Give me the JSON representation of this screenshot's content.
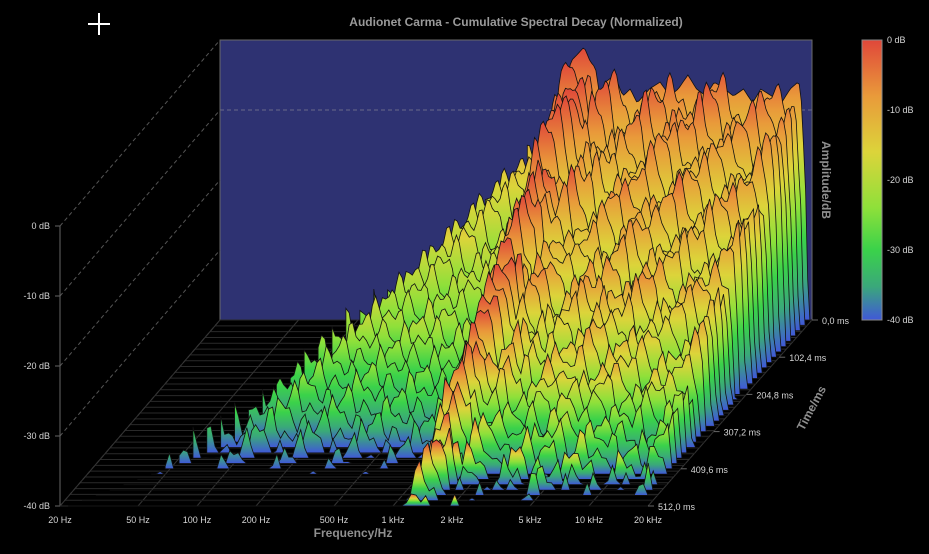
{
  "chart_data": {
    "type": "waterfall",
    "title": "Audionet Carma - Cumulative Spectral Decay (Normalized)",
    "xlabel": "Frequency/Hz",
    "ylabel": "Amplitude/dB",
    "zlabel": "Time/ms",
    "x_scale": "log",
    "xlim": [
      20,
      20000
    ],
    "ylim": [
      -40,
      0
    ],
    "x_ticks": [
      "20 Hz",
      "50 Hz",
      "100 Hz",
      "200 Hz",
      "500 Hz",
      "1 kHz",
      "2 kHz",
      "5 kHz",
      "10 kHz",
      "20 kHz"
    ],
    "x_tick_values": [
      20,
      50,
      100,
      200,
      500,
      1000,
      2000,
      5000,
      10000,
      20000
    ],
    "y_ticks": [
      "0 dB",
      "-10 dB",
      "-20 dB",
      "-30 dB",
      "-40 dB"
    ],
    "y_tick_values": [
      0,
      -10,
      -20,
      -30,
      -40
    ],
    "time_ticks": [
      "0,0 ms",
      "102,4 ms",
      "204,8 ms",
      "307,2 ms",
      "409,6 ms",
      "512,0 ms"
    ],
    "time_tick_values": [
      0,
      102.4,
      204.8,
      307.2,
      409.6,
      512.0
    ],
    "colorbar": {
      "labels": [
        "0 dB",
        "-10 dB",
        "-20 dB",
        "-30 dB",
        "-40 dB"
      ],
      "colors": [
        "#e0473a",
        "#e99a3a",
        "#dcd43a",
        "#8ee03a",
        "#3ad24a",
        "#3aa87a",
        "#4058d8"
      ]
    },
    "front_slice": {
      "time_ms": 0,
      "freq_hz": [
        1000,
        1100,
        1150,
        1200,
        1300,
        1400,
        1500,
        1600,
        1700,
        1800,
        2000,
        2200,
        2400,
        2600,
        3000,
        3400,
        3800,
        4200,
        4700,
        5200,
        5800,
        6400,
        7200,
        8000,
        9000,
        10000,
        11000,
        12500,
        14000,
        15500,
        17000,
        18500,
        20000
      ],
      "db": [
        -13,
        -8,
        -6,
        -3,
        -2,
        -1,
        -3,
        -4,
        -9,
        -6,
        -5,
        -8,
        -7,
        -9,
        -7,
        -6,
        -8,
        -7,
        -5,
        -7,
        -8,
        -6,
        -7,
        -8,
        -7,
        -9,
        -7,
        -8,
        -9,
        -7,
        -6,
        -8,
        -30
      ]
    },
    "colors": {
      "background": "#000000",
      "back_wall": "#2e3272",
      "grid": "#555555",
      "mesh_line": "#111111"
    }
  }
}
